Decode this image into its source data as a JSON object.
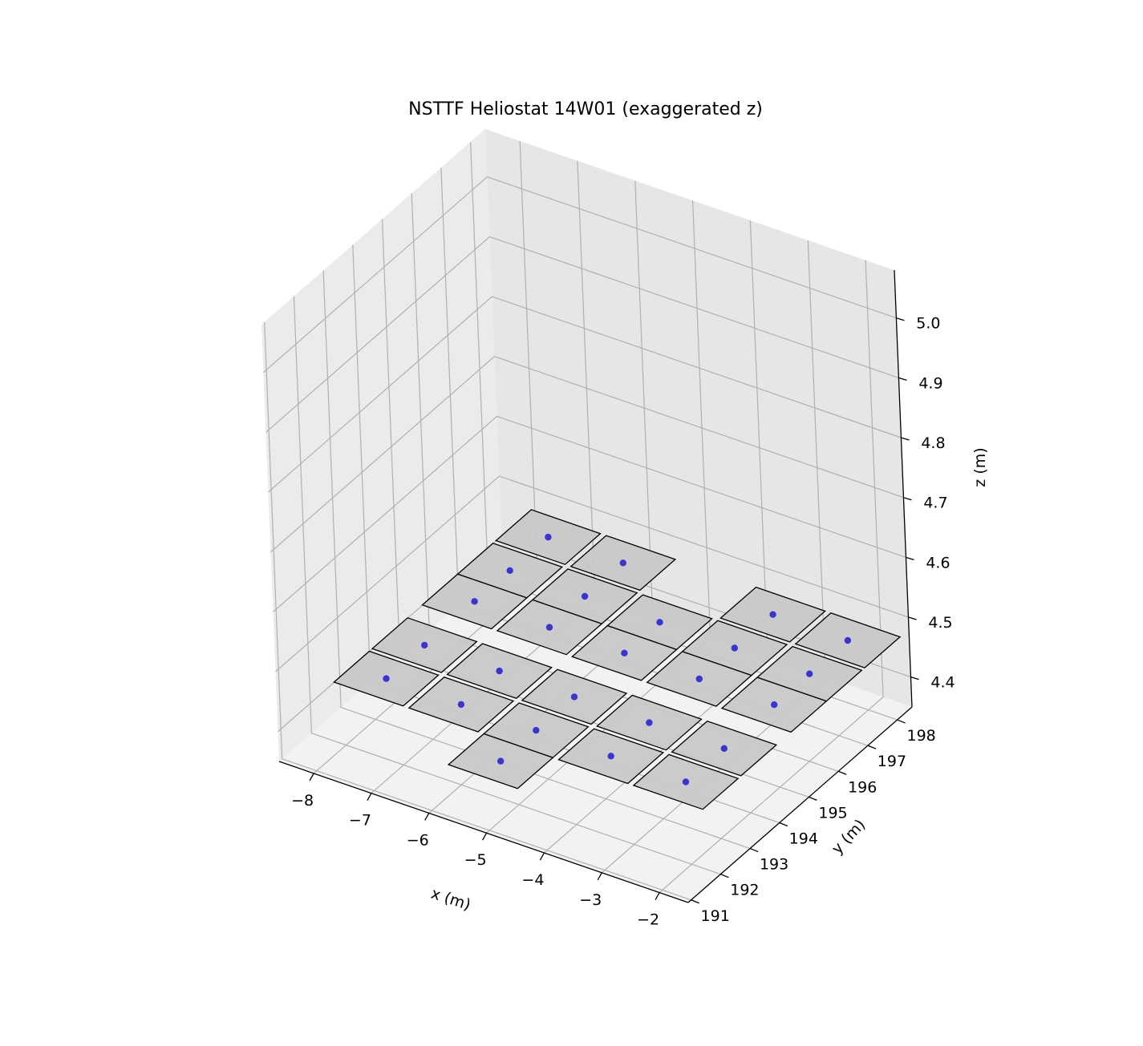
{
  "chart_data": {
    "type": "scatter",
    "title": "NSTTF Heliostat 14W01 (exaggerated z)",
    "xlabel": "x (m)",
    "ylabel": "y (m)",
    "zlabel": "z (m)",
    "xlim": [
      -8.6,
      -1.5
    ],
    "ylim": [
      190.9,
      198.5
    ],
    "zlim": [
      4.35,
      5.08
    ],
    "xticks": [
      -8,
      -7,
      -6,
      -5,
      -4,
      -3,
      -2
    ],
    "xtick_labels": [
      "−8",
      "−7",
      "−6",
      "−5",
      "−4",
      "−3",
      "−2"
    ],
    "yticks": [
      191,
      192,
      193,
      194,
      195,
      196,
      197,
      198
    ],
    "ytick_labels": [
      "191",
      "192",
      "193",
      "194",
      "195",
      "196",
      "197",
      "198"
    ],
    "zticks": [
      4.4,
      4.5,
      4.6,
      4.7,
      4.8,
      4.9,
      5.0
    ],
    "ztick_labels": [
      "4.4",
      "4.5",
      "4.6",
      "4.7",
      "4.8",
      "4.9",
      "5.0"
    ],
    "grid": true,
    "view": {
      "elev": 30,
      "azim": -60
    },
    "facet_width_m": 1.2,
    "facet_height_m": 1.2,
    "facet_z_m": 4.48,
    "facet_color": "#c8c8c8",
    "edge_color": "#000000",
    "center_color": "#3a34d0",
    "facet_centers": [
      {
        "x": -7.3,
        "y": 197.6
      },
      {
        "x": -7.3,
        "y": 196.3
      },
      {
        "x": -7.3,
        "y": 195.1
      },
      {
        "x": -7.3,
        "y": 193.4
      },
      {
        "x": -7.3,
        "y": 192.1
      },
      {
        "x": -6.0,
        "y": 197.6
      },
      {
        "x": -6.0,
        "y": 196.3
      },
      {
        "x": -6.0,
        "y": 195.1
      },
      {
        "x": -6.0,
        "y": 193.4
      },
      {
        "x": -6.0,
        "y": 192.1
      },
      {
        "x": -4.7,
        "y": 196.3
      },
      {
        "x": -4.7,
        "y": 195.1
      },
      {
        "x": -4.7,
        "y": 193.4
      },
      {
        "x": -4.7,
        "y": 192.1
      },
      {
        "x": -3.4,
        "y": 197.6
      },
      {
        "x": -3.4,
        "y": 196.3
      },
      {
        "x": -3.4,
        "y": 195.1
      },
      {
        "x": -3.4,
        "y": 193.4
      },
      {
        "x": -3.4,
        "y": 192.1
      },
      {
        "x": -2.1,
        "y": 197.6
      },
      {
        "x": -2.1,
        "y": 196.3
      },
      {
        "x": -2.1,
        "y": 195.1
      },
      {
        "x": -2.1,
        "y": 193.4
      },
      {
        "x": -2.1,
        "y": 192.1
      },
      {
        "x": -4.7,
        "y": 190.9
      }
    ]
  }
}
